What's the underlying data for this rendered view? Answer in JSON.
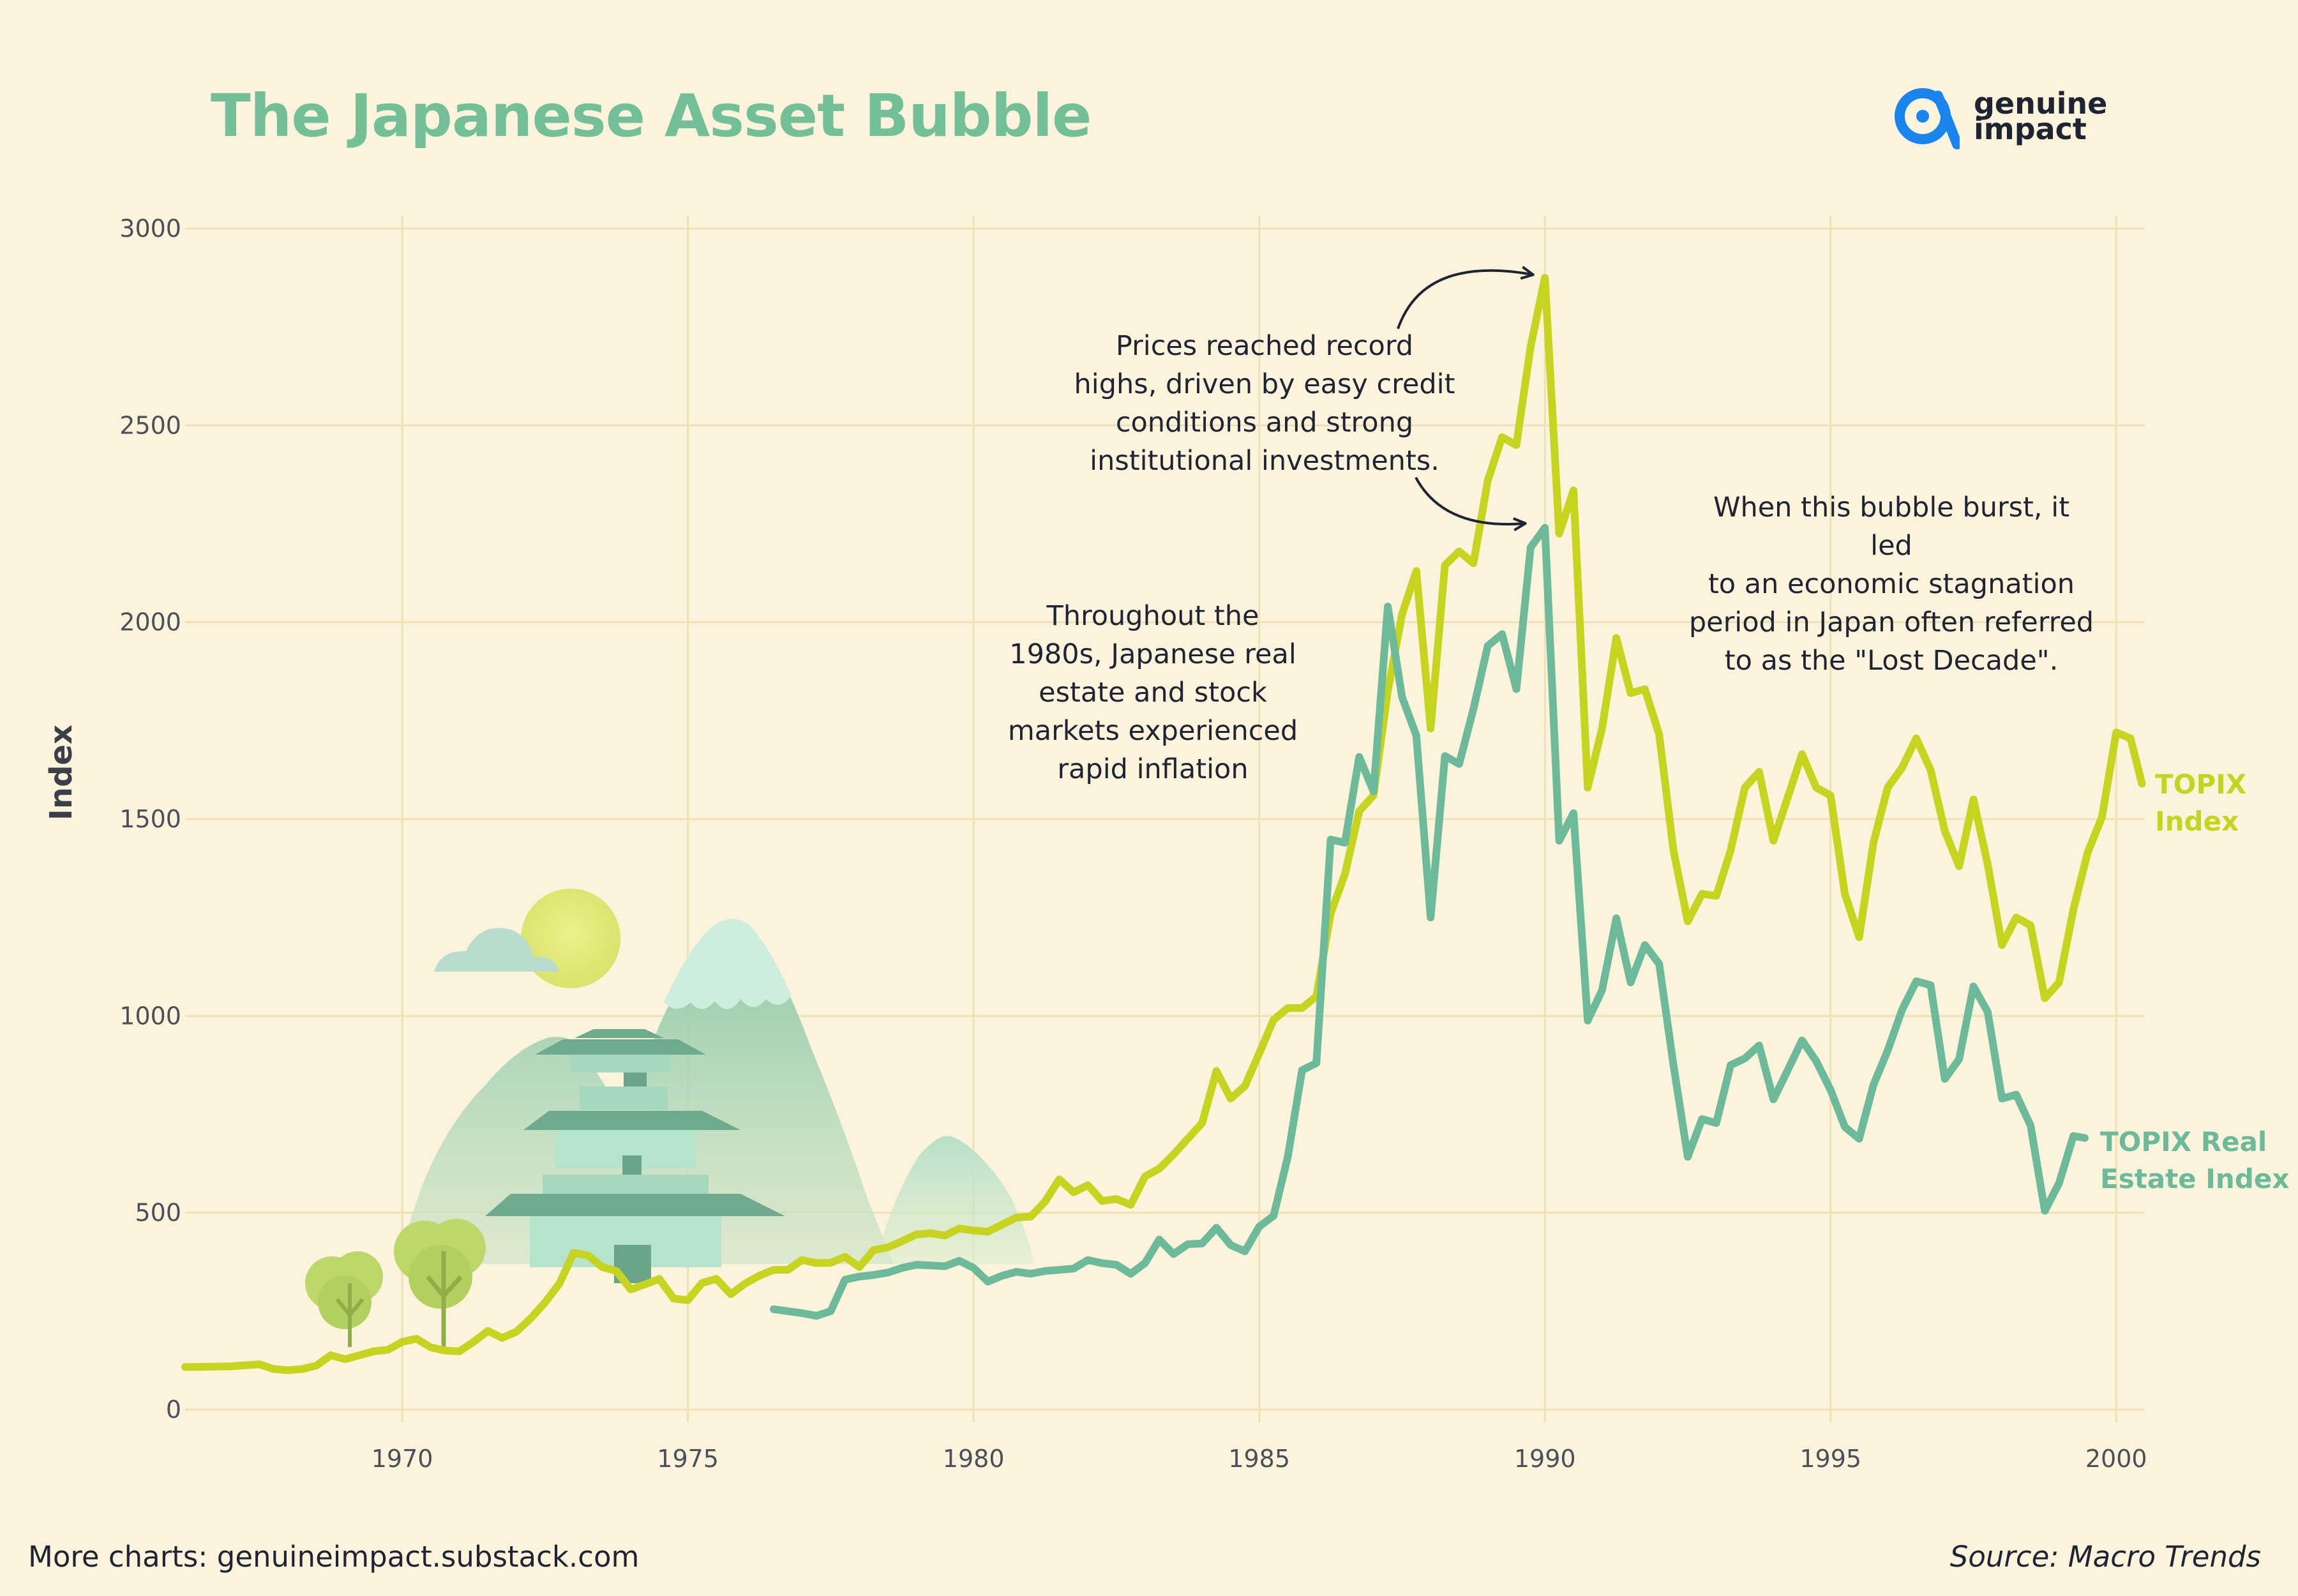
{
  "page": {
    "title": "The Japanese Asset Bubble",
    "brand_name": "genuine\nimpact",
    "footer_left": "More charts: genuineimpact.substack.com",
    "footer_right": "Source: Macro Trends"
  },
  "annotations": {
    "peak": "Prices reached record\nhighs, driven by easy credit\nconditions and strong\ninstitutional investments.",
    "burst": "When this bubble burst, it led\nto an economic stagnation\nperiod in Japan often referred\nto as the \"Lost Decade\".",
    "inflation": "Throughout the\n1980s, Japanese real\nestate and stock\nmarkets experienced\nrapid inflation"
  },
  "colors": {
    "background": "#fcf3dd",
    "topix": "#c6d31f",
    "real_estate": "#6dba9b",
    "title": "#72bf98",
    "grid": "#efe0b6",
    "brand": "#1a84ef"
  },
  "chart_data": {
    "type": "line",
    "title": "The Japanese Asset Bubble",
    "xlabel": "",
    "ylabel": "Index",
    "xlim": [
      1966.2,
      2000.5
    ],
    "ylim": [
      0,
      3000
    ],
    "x_ticks": [
      1970,
      1975,
      1980,
      1985,
      1990,
      1995,
      2000
    ],
    "y_ticks": [
      0,
      500,
      1000,
      1500,
      2000,
      2500,
      3000
    ],
    "grid": true,
    "legend": "inline labels at line ends",
    "series": [
      {
        "name": "TOPIX\nIndex",
        "color": "#c6d31f",
        "points": [
          [
            1966.2,
            108
          ],
          [
            1967.0,
            110
          ],
          [
            1967.5,
            115
          ],
          [
            1967.75,
            103
          ],
          [
            1968.0,
            100
          ],
          [
            1968.25,
            103
          ],
          [
            1968.5,
            112
          ],
          [
            1968.75,
            138
          ],
          [
            1969.0,
            128
          ],
          [
            1969.25,
            138
          ],
          [
            1969.5,
            148
          ],
          [
            1969.75,
            152
          ],
          [
            1970.0,
            172
          ],
          [
            1970.25,
            180
          ],
          [
            1970.5,
            158
          ],
          [
            1970.75,
            150
          ],
          [
            1971.0,
            148
          ],
          [
            1971.25,
            172
          ],
          [
            1971.5,
            200
          ],
          [
            1971.75,
            182
          ],
          [
            1972.0,
            198
          ],
          [
            1972.25,
            232
          ],
          [
            1972.5,
            272
          ],
          [
            1972.75,
            320
          ],
          [
            1973.0,
            398
          ],
          [
            1973.25,
            392
          ],
          [
            1973.5,
            362
          ],
          [
            1973.75,
            352
          ],
          [
            1974.0,
            305
          ],
          [
            1974.25,
            318
          ],
          [
            1974.5,
            332
          ],
          [
            1974.75,
            282
          ],
          [
            1975.0,
            278
          ],
          [
            1975.25,
            322
          ],
          [
            1975.5,
            332
          ],
          [
            1975.75,
            293
          ],
          [
            1976.0,
            320
          ],
          [
            1976.25,
            340
          ],
          [
            1976.5,
            355
          ],
          [
            1976.75,
            355
          ],
          [
            1977.0,
            380
          ],
          [
            1977.25,
            372
          ],
          [
            1977.5,
            373
          ],
          [
            1977.75,
            388
          ],
          [
            1978.0,
            362
          ],
          [
            1978.25,
            405
          ],
          [
            1978.5,
            412
          ],
          [
            1978.75,
            428
          ],
          [
            1979.0,
            445
          ],
          [
            1979.25,
            448
          ],
          [
            1979.5,
            442
          ],
          [
            1979.75,
            460
          ],
          [
            1980.0,
            455
          ],
          [
            1980.25,
            452
          ],
          [
            1980.5,
            470
          ],
          [
            1980.75,
            488
          ],
          [
            1981.0,
            490
          ],
          [
            1981.25,
            528
          ],
          [
            1981.5,
            585
          ],
          [
            1981.75,
            552
          ],
          [
            1982.0,
            570
          ],
          [
            1982.25,
            530
          ],
          [
            1982.5,
            535
          ],
          [
            1982.75,
            520
          ],
          [
            1983.0,
            592
          ],
          [
            1983.25,
            612
          ],
          [
            1983.5,
            648
          ],
          [
            1983.75,
            688
          ],
          [
            1984.0,
            728
          ],
          [
            1984.25,
            860
          ],
          [
            1984.5,
            790
          ],
          [
            1984.75,
            822
          ],
          [
            1985.0,
            905
          ],
          [
            1985.25,
            990
          ],
          [
            1985.5,
            1020
          ],
          [
            1985.75,
            1020
          ],
          [
            1986.0,
            1050
          ],
          [
            1986.25,
            1260
          ],
          [
            1986.5,
            1360
          ],
          [
            1986.75,
            1520
          ],
          [
            1987.0,
            1560
          ],
          [
            1987.25,
            1825
          ],
          [
            1987.5,
            2020
          ],
          [
            1987.75,
            2130
          ],
          [
            1988.0,
            1730
          ],
          [
            1988.25,
            2145
          ],
          [
            1988.5,
            2180
          ],
          [
            1988.75,
            2150
          ],
          [
            1989.0,
            2360
          ],
          [
            1989.25,
            2470
          ],
          [
            1989.5,
            2450
          ],
          [
            1989.75,
            2700
          ],
          [
            1990.0,
            2875
          ],
          [
            1990.25,
            2225
          ],
          [
            1990.5,
            2335
          ],
          [
            1990.75,
            1580
          ],
          [
            1991.0,
            1730
          ],
          [
            1991.25,
            1960
          ],
          [
            1991.5,
            1820
          ],
          [
            1991.75,
            1830
          ],
          [
            1992.0,
            1715
          ],
          [
            1992.25,
            1420
          ],
          [
            1992.5,
            1240
          ],
          [
            1992.75,
            1310
          ],
          [
            1993.0,
            1305
          ],
          [
            1993.25,
            1420
          ],
          [
            1993.5,
            1580
          ],
          [
            1993.75,
            1620
          ],
          [
            1994.0,
            1445
          ],
          [
            1994.25,
            1555
          ],
          [
            1994.5,
            1665
          ],
          [
            1994.75,
            1580
          ],
          [
            1995.0,
            1560
          ],
          [
            1995.25,
            1310
          ],
          [
            1995.5,
            1200
          ],
          [
            1995.75,
            1440
          ],
          [
            1996.0,
            1580
          ],
          [
            1996.25,
            1630
          ],
          [
            1996.5,
            1705
          ],
          [
            1996.75,
            1625
          ],
          [
            1997.0,
            1470
          ],
          [
            1997.25,
            1380
          ],
          [
            1997.5,
            1550
          ],
          [
            1997.75,
            1385
          ],
          [
            1998.0,
            1180
          ],
          [
            1998.25,
            1250
          ],
          [
            1998.5,
            1230
          ],
          [
            1998.75,
            1045
          ],
          [
            1999.0,
            1085
          ],
          [
            1999.25,
            1270
          ],
          [
            1999.5,
            1415
          ],
          [
            1999.75,
            1505
          ],
          [
            2000.0,
            1720
          ],
          [
            2000.25,
            1705
          ],
          [
            2000.45,
            1590
          ]
        ]
      },
      {
        "name": "TOPIX Real\nEstate Index",
        "color": "#6dba9b",
        "points": [
          [
            1976.5,
            255
          ],
          [
            1977.0,
            245
          ],
          [
            1977.25,
            238
          ],
          [
            1977.5,
            250
          ],
          [
            1977.75,
            330
          ],
          [
            1978.0,
            338
          ],
          [
            1978.25,
            342
          ],
          [
            1978.5,
            348
          ],
          [
            1978.75,
            360
          ],
          [
            1979.0,
            368
          ],
          [
            1979.25,
            366
          ],
          [
            1979.5,
            364
          ],
          [
            1979.75,
            378
          ],
          [
            1980.0,
            360
          ],
          [
            1980.25,
            325
          ],
          [
            1980.5,
            340
          ],
          [
            1980.75,
            350
          ],
          [
            1981.0,
            345
          ],
          [
            1981.25,
            352
          ],
          [
            1981.5,
            355
          ],
          [
            1981.75,
            358
          ],
          [
            1982.0,
            380
          ],
          [
            1982.25,
            372
          ],
          [
            1982.5,
            368
          ],
          [
            1982.75,
            345
          ],
          [
            1983.0,
            372
          ],
          [
            1983.25,
            432
          ],
          [
            1983.5,
            395
          ],
          [
            1983.75,
            420
          ],
          [
            1984.0,
            422
          ],
          [
            1984.25,
            462
          ],
          [
            1984.5,
            418
          ],
          [
            1984.75,
            402
          ],
          [
            1985.0,
            465
          ],
          [
            1985.25,
            492
          ],
          [
            1985.5,
            642
          ],
          [
            1985.75,
            862
          ],
          [
            1986.0,
            880
          ],
          [
            1986.25,
            1448
          ],
          [
            1986.5,
            1440
          ],
          [
            1986.75,
            1658
          ],
          [
            1987.0,
            1570
          ],
          [
            1987.25,
            2040
          ],
          [
            1987.5,
            1810
          ],
          [
            1987.75,
            1712
          ],
          [
            1988.0,
            1250
          ],
          [
            1988.25,
            1660
          ],
          [
            1988.5,
            1640
          ],
          [
            1988.75,
            1780
          ],
          [
            1989.0,
            1940
          ],
          [
            1989.25,
            1970
          ],
          [
            1989.5,
            1830
          ],
          [
            1989.75,
            2190
          ],
          [
            1990.0,
            2240
          ],
          [
            1990.25,
            1445
          ],
          [
            1990.5,
            1515
          ],
          [
            1990.75,
            988
          ],
          [
            1991.0,
            1065
          ],
          [
            1991.25,
            1248
          ],
          [
            1991.5,
            1085
          ],
          [
            1991.75,
            1180
          ],
          [
            1992.0,
            1132
          ],
          [
            1992.25,
            875
          ],
          [
            1992.5,
            642
          ],
          [
            1992.75,
            738
          ],
          [
            1993.0,
            728
          ],
          [
            1993.25,
            875
          ],
          [
            1993.5,
            892
          ],
          [
            1993.75,
            925
          ],
          [
            1994.0,
            788
          ],
          [
            1994.25,
            862
          ],
          [
            1994.5,
            938
          ],
          [
            1994.75,
            885
          ],
          [
            1995.0,
            812
          ],
          [
            1995.25,
            718
          ],
          [
            1995.5,
            688
          ],
          [
            1995.75,
            825
          ],
          [
            1996.0,
            912
          ],
          [
            1996.25,
            1015
          ],
          [
            1996.5,
            1088
          ],
          [
            1996.75,
            1078
          ],
          [
            1997.0,
            840
          ],
          [
            1997.25,
            890
          ],
          [
            1997.5,
            1075
          ],
          [
            1997.75,
            1010
          ],
          [
            1998.0,
            790
          ],
          [
            1998.25,
            800
          ],
          [
            1998.5,
            722
          ],
          [
            1998.75,
            505
          ],
          [
            1999.0,
            575
          ],
          [
            1999.25,
            695
          ],
          [
            1999.45,
            690
          ]
        ]
      }
    ]
  }
}
